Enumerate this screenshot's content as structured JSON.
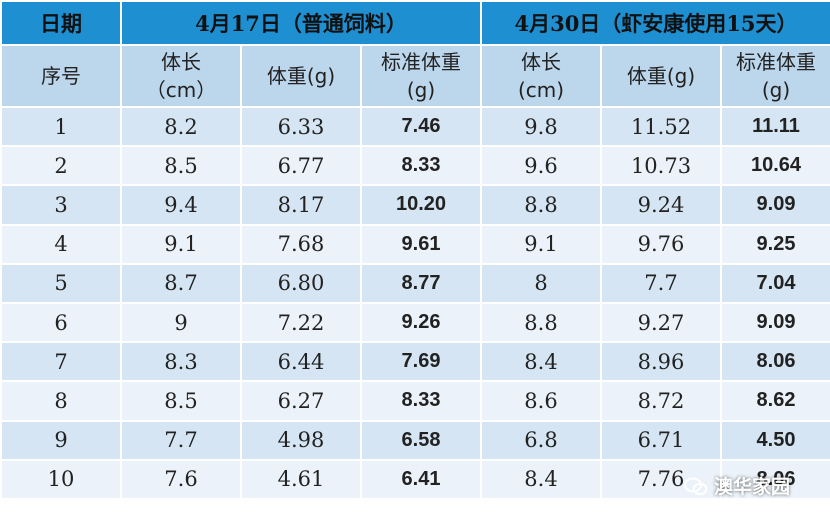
{
  "header": {
    "date_label": "日期",
    "period_1": "4月17日（普通饲料）",
    "period_2": "4月30日（虾安康使用15天）"
  },
  "columns": [
    [
      "序号"
    ],
    [
      "体长",
      "（cm）"
    ],
    [
      "体重(g)"
    ],
    [
      "标准体重",
      "(g)"
    ],
    [
      "体长",
      "(cm)"
    ],
    [
      "体重(g)"
    ],
    [
      "标准体重",
      "(g)"
    ]
  ],
  "table": {
    "rows": [
      [
        "1",
        "8.2",
        "6.33",
        "7.46",
        "9.8",
        "11.52",
        "11.11"
      ],
      [
        "2",
        "8.5",
        "6.77",
        "8.33",
        "9.6",
        "10.73",
        "10.64"
      ],
      [
        "3",
        "9.4",
        "8.17",
        "10.20",
        "8.8",
        "9.24",
        "9.09"
      ],
      [
        "4",
        "9.1",
        "7.68",
        "9.61",
        "9.1",
        "9.76",
        "9.25"
      ],
      [
        "5",
        "8.7",
        "6.80",
        "8.77",
        "8",
        "7.7",
        "7.04"
      ],
      [
        "6",
        "9",
        "7.22",
        "9.26",
        "8.8",
        "9.27",
        "9.09"
      ],
      [
        "7",
        "8.3",
        "6.44",
        "7.69",
        "8.4",
        "8.96",
        "8.06"
      ],
      [
        "8",
        "8.5",
        "6.27",
        "8.33",
        "8.6",
        "8.72",
        "8.62"
      ],
      [
        "9",
        "7.7",
        "4.98",
        "6.58",
        "6.8",
        "6.71",
        "4.50"
      ],
      [
        "10",
        "7.6",
        "4.61",
        "6.41",
        "8.4",
        "7.76",
        "8.06"
      ]
    ]
  },
  "watermark": "澳华家园"
}
